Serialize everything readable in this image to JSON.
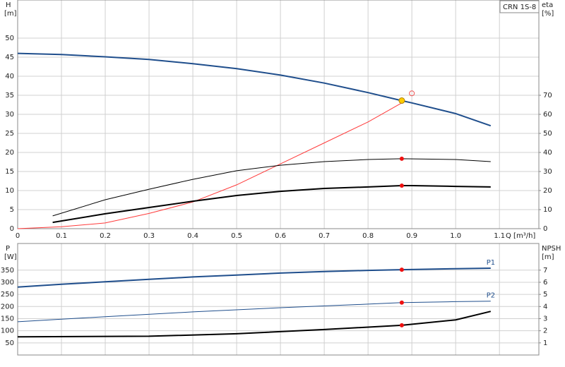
{
  "chart_data": [
    {
      "type": "line",
      "title": "CRN 1S-8",
      "y_label": "H",
      "y_unit": "[m]",
      "y2_label": "eta",
      "y2_unit": "[%]",
      "x_label": "Q [m³/h]",
      "xlim": [
        0,
        1.19
      ],
      "xticks": [
        0,
        0.1,
        0.2,
        0.3,
        0.4,
        0.5,
        0.6,
        0.7,
        0.8,
        0.9,
        {
          "value": 1,
          "label": "1.0"
        },
        1.1
      ],
      "ylim": [
        0,
        60
      ],
      "yticks": [
        0,
        5,
        10,
        15,
        20,
        25,
        30,
        35,
        40,
        45,
        50
      ],
      "y2lim": [
        0,
        120
      ],
      "y2ticks": [
        0,
        10,
        20,
        30,
        40,
        50,
        60,
        70
      ],
      "grid": true,
      "series": [
        {
          "color": "#1f4e8c",
          "width": 2,
          "axis": "y",
          "x": [
            0,
            0.1,
            0.2,
            0.3,
            0.4,
            0.5,
            0.6,
            0.7,
            0.8,
            0.877,
            0.9,
            1.0,
            1.08
          ],
          "values": [
            46,
            45.7,
            45.1,
            44.4,
            43.3,
            42,
            40.3,
            38.2,
            35.7,
            33.6,
            33,
            30.2,
            27
          ]
        },
        {
          "color": "#ff3b3b",
          "width": 1,
          "axis": "y2",
          "x": [
            0,
            0.1,
            0.2,
            0.3,
            0.4,
            0.5,
            0.6,
            0.7,
            0.8,
            0.877
          ],
          "values": [
            0,
            1,
            3,
            8,
            14,
            23,
            34,
            45,
            56,
            66
          ]
        },
        {
          "color": "#000000",
          "width": 1,
          "axis": "y2",
          "x": [
            0.08,
            0.2,
            0.3,
            0.4,
            0.5,
            0.6,
            0.7,
            0.8,
            0.877,
            1.0,
            1.08
          ],
          "values": [
            6.7,
            15.2,
            20.7,
            25.9,
            30.4,
            33.3,
            35.2,
            36.3,
            36.7,
            36.3,
            35.2
          ]
        },
        {
          "color": "#000000",
          "width": 2,
          "axis": "y2",
          "x": [
            0.08,
            0.2,
            0.3,
            0.4,
            0.5,
            0.6,
            0.7,
            0.8,
            0.877,
            0.9,
            1.0,
            1.08
          ],
          "values": [
            3.3,
            7.8,
            11.1,
            14.4,
            17.4,
            19.6,
            21.1,
            21.9,
            22.6,
            22.6,
            22.2,
            21.9
          ]
        }
      ],
      "points": [
        {
          "x": 0.877,
          "y": 33.6,
          "axis": "y",
          "color": "#ffcc00",
          "style": "filled",
          "r": 4
        },
        {
          "x": 0.877,
          "y": 36.7,
          "axis": "y2",
          "color": "#ee1111",
          "style": "filled",
          "r": 3
        },
        {
          "x": 0.877,
          "y": 22.6,
          "axis": "y2",
          "color": "#ee1111",
          "style": "filled",
          "r": 3
        },
        {
          "x": 0.9,
          "y": 71,
          "axis": "y2",
          "color": "#ee5555",
          "style": "hollow",
          "r": 3.5
        }
      ]
    },
    {
      "type": "line",
      "y_label": "P",
      "y_unit": "[W]",
      "y2_label": "NPSH",
      "y2_unit": "[m]",
      "xlim": [
        0,
        1.19
      ],
      "ylim": [
        0,
        460
      ],
      "yticks": [
        50,
        100,
        150,
        200,
        250,
        300,
        350
      ],
      "y2lim": [
        0,
        9.2
      ],
      "y2ticks": [
        1,
        2,
        3,
        4,
        5,
        6,
        7
      ],
      "grid": true,
      "series": [
        {
          "name": "P1",
          "color": "#1f4e8c",
          "width": 2,
          "axis": "y",
          "x": [
            0,
            0.1,
            0.2,
            0.3,
            0.4,
            0.5,
            0.6,
            0.7,
            0.8,
            0.877,
            1.0,
            1.08
          ],
          "values": [
            280,
            292,
            302,
            312,
            322,
            330,
            338,
            344,
            349,
            352,
            356,
            358
          ]
        },
        {
          "name": "P2",
          "color": "#1f4e8c",
          "width": 1,
          "axis": "y",
          "x": [
            0,
            0.2,
            0.4,
            0.6,
            0.8,
            0.877,
            1.0,
            1.08
          ],
          "values": [
            137,
            158,
            178,
            195,
            210,
            216,
            220,
            222
          ]
        },
        {
          "color": "#000000",
          "width": 2,
          "axis": "y2",
          "x": [
            0,
            0.3,
            0.5,
            0.7,
            0.877,
            1.0,
            1.08
          ],
          "values": [
            1.5,
            1.55,
            1.75,
            2.1,
            2.45,
            2.9,
            3.6
          ]
        }
      ],
      "points": [
        {
          "x": 0.877,
          "y": 352,
          "axis": "y",
          "color": "#ee1111",
          "style": "filled",
          "r": 3
        },
        {
          "x": 0.877,
          "y": 216,
          "axis": "y",
          "color": "#ee1111",
          "style": "filled",
          "r": 3
        },
        {
          "x": 0.877,
          "y": 2.45,
          "axis": "y2",
          "color": "#ee1111",
          "style": "filled",
          "r": 3
        }
      ]
    }
  ]
}
